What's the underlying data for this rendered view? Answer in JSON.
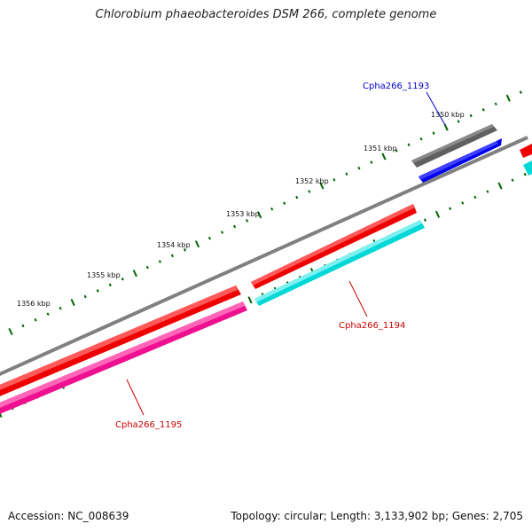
{
  "title": "Chlorobium phaeobacteroides DSM 266, complete genome",
  "footer": {
    "accession": "Accession: NC_008639",
    "summary": "Topology: circular; Length: 3,133,902 bp; Genes: 2,705"
  },
  "scale": {
    "unit": "kbp",
    "labels": [
      {
        "value": 1350,
        "text": "1350 kbp"
      },
      {
        "value": 1351,
        "text": "1351 kbp"
      },
      {
        "value": 1352,
        "text": "1352 kbp"
      },
      {
        "value": 1353,
        "text": "1353 kbp"
      },
      {
        "value": 1354,
        "text": "1354 kbp"
      },
      {
        "value": 1355,
        "text": "1355 kbp"
      },
      {
        "value": 1356,
        "text": "1356 kbp"
      }
    ]
  },
  "genes": [
    {
      "name": "Cpha266_1193",
      "label_color": "#0000cc",
      "fill": "#0000ee",
      "strand": "reverse"
    },
    {
      "name": "Cpha266_1194",
      "label_color": "#cc0000",
      "fill": "#00d8d8",
      "strand": "reverse"
    },
    {
      "name": "Cpha266_1195",
      "label_color": "#cc0000",
      "fill": "#ee1090",
      "strand": "reverse"
    }
  ],
  "colors": {
    "backbone": "#808080",
    "cds_forward": "#ee0000",
    "gray_feature": "#606060",
    "tick": "#006600"
  }
}
